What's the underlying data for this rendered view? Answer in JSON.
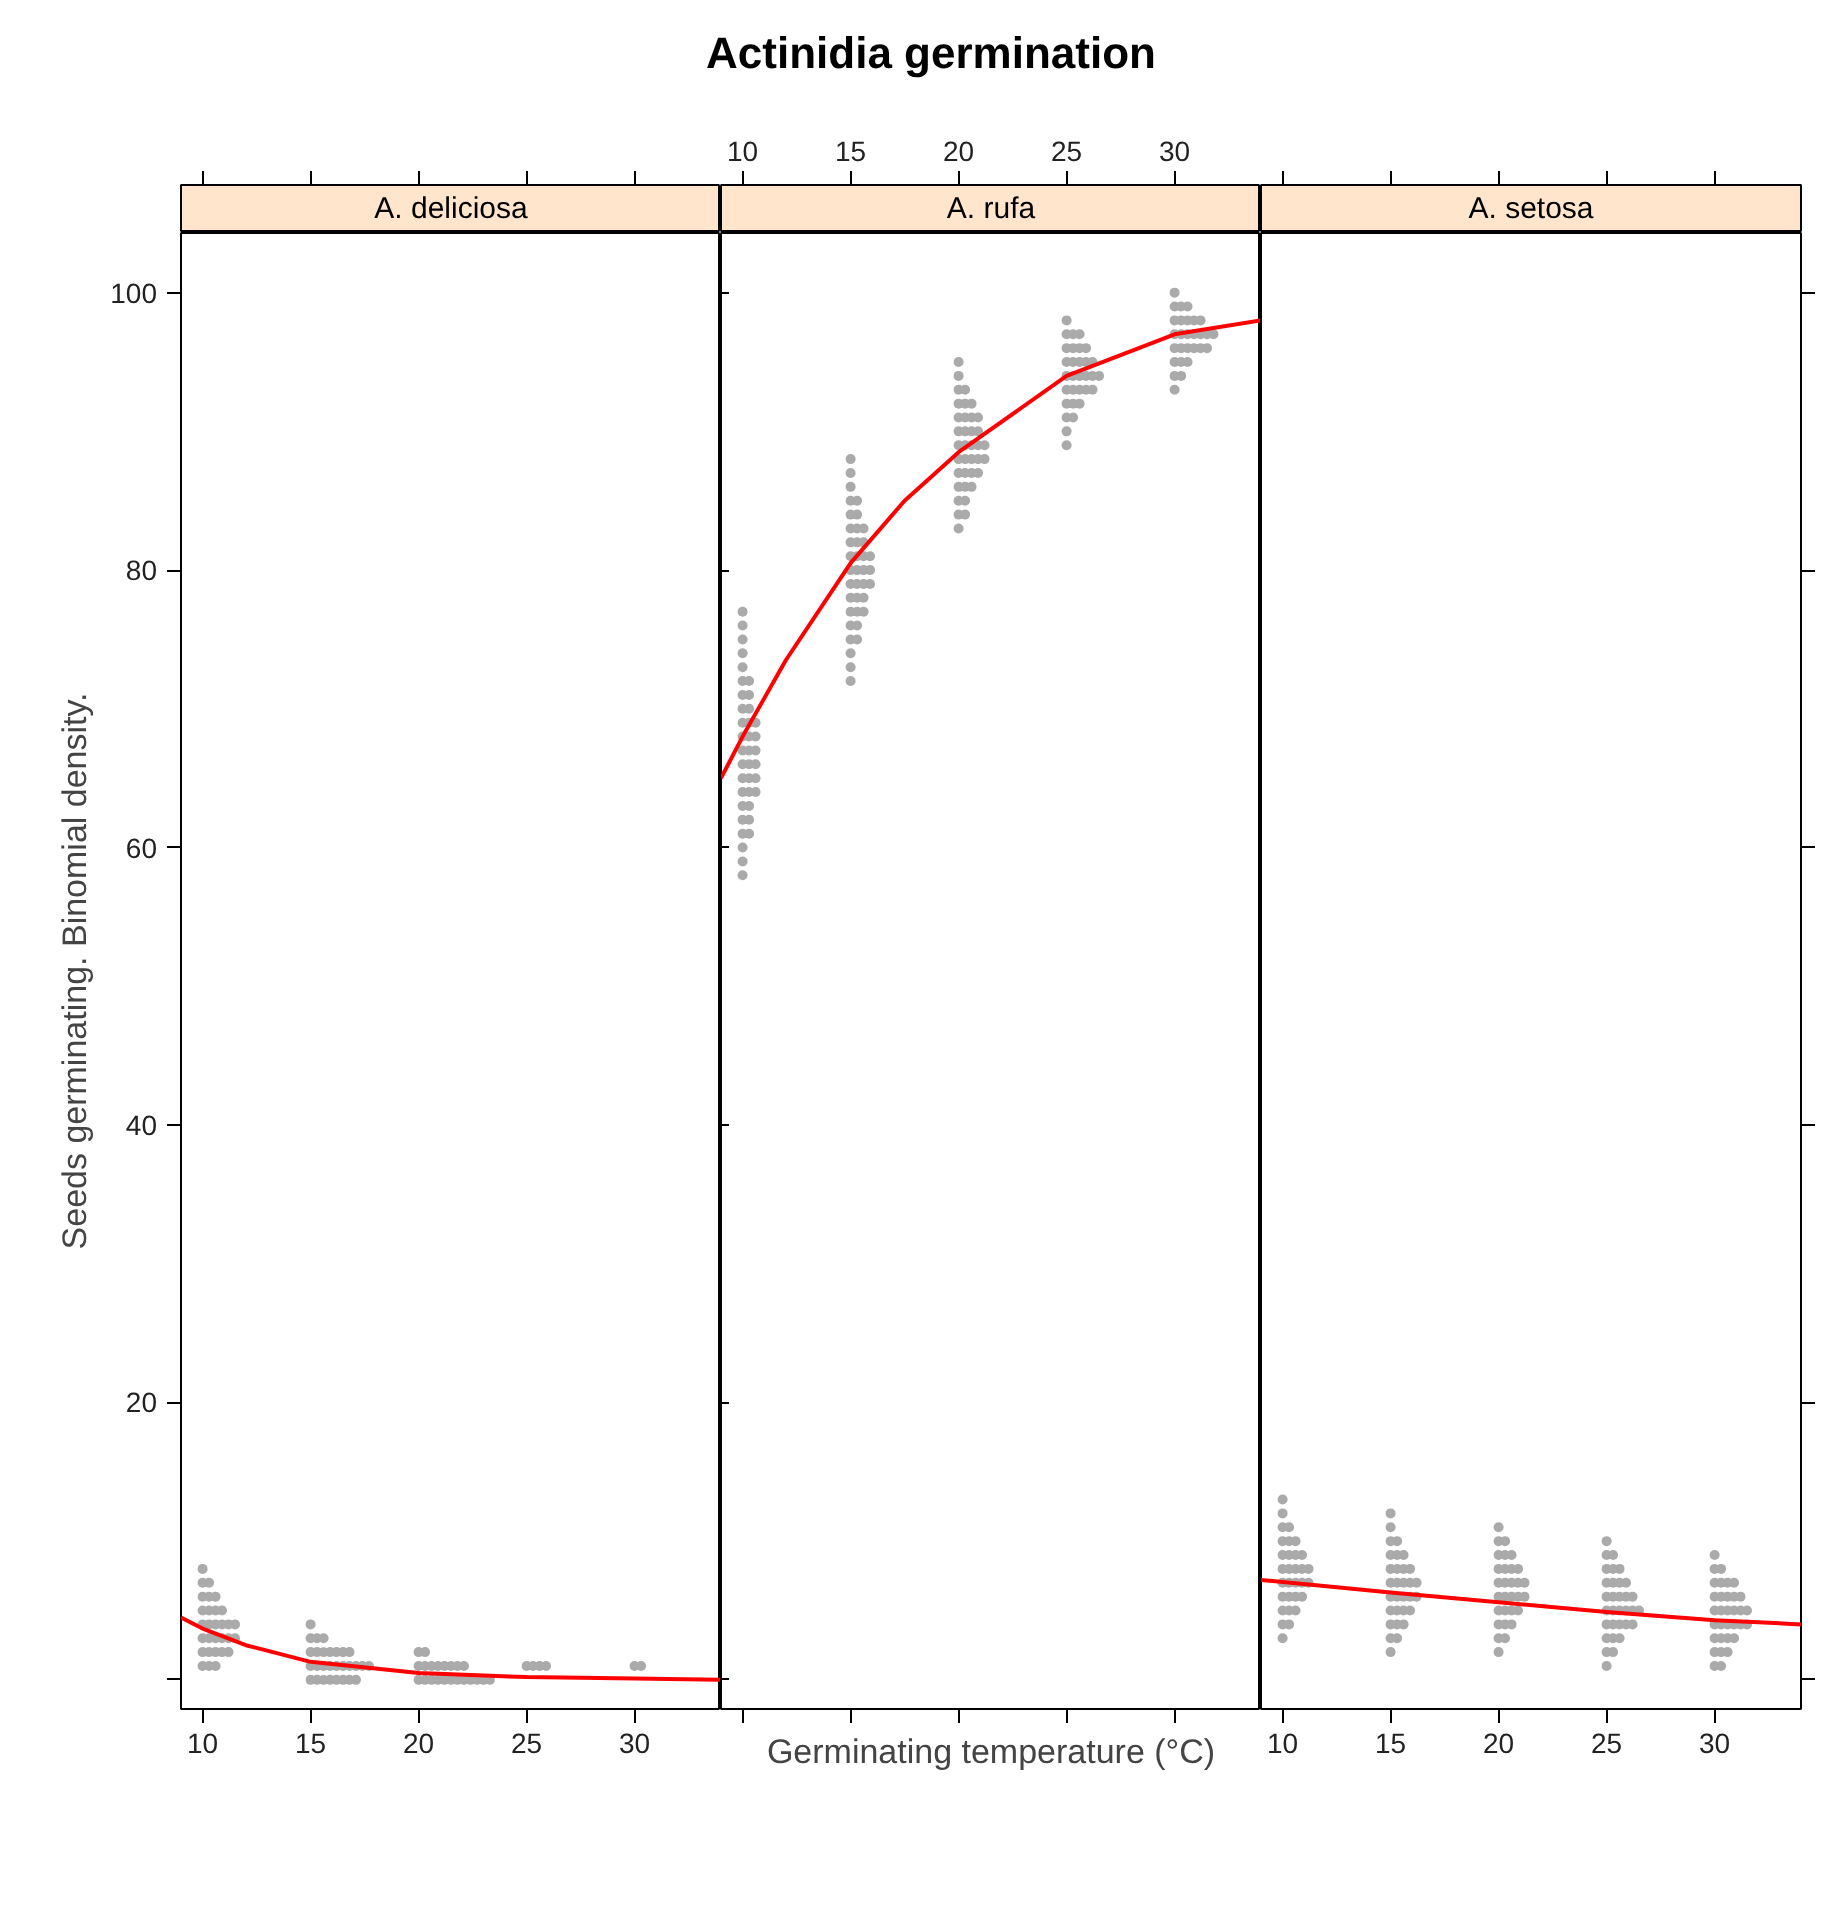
{
  "chart_data": [
    {
      "type": "scatter",
      "title": "A. deliciosa",
      "annotations": [
        "Actinidia germination"
      ],
      "ylabel": "Seeds germinating. Binomial density.",
      "xlim": [
        9,
        34
      ],
      "xticks": [
        10,
        15,
        20,
        25,
        30
      ],
      "ylim": [
        -2.1,
        104.3
      ],
      "yticks": [
        {
          "value": 0,
          "label": null
        },
        20,
        40,
        60,
        80,
        100
      ],
      "grid": false,
      "series": [
        {
          "marker": "circle",
          "color": "#aaaaaa",
          "x": [
            10,
            10.3,
            10.6,
            10,
            10.3,
            10.6,
            10.9,
            11.2,
            10,
            10.3,
            10.6,
            10.9,
            11.2,
            11.5,
            10,
            10.3,
            10.6,
            10.9,
            11.2,
            11.5,
            10,
            10.3,
            10.6,
            10.9,
            10,
            10.3,
            10.6,
            10,
            10.3,
            10,
            15,
            15.3,
            15.6,
            15.9,
            16.2,
            16.5,
            16.8,
            17.1,
            15,
            15.3,
            15.6,
            15.9,
            16.2,
            16.5,
            16.8,
            17.1,
            17.4,
            17.7,
            15,
            15.3,
            15.6,
            15.9,
            16.2,
            16.5,
            16.8,
            15,
            15.3,
            15.6,
            15,
            20,
            20.3,
            20.6,
            20.9,
            21.2,
            21.5,
            21.8,
            22.1,
            22.4,
            22.7,
            23,
            23.3,
            20,
            20.3,
            20.6,
            20.9,
            21.2,
            21.5,
            21.8,
            22.1,
            20,
            20.3,
            25,
            25.3,
            25.6,
            25.9,
            30,
            30.3
          ],
          "values": [
            1,
            1,
            1,
            2,
            2,
            2,
            2,
            2,
            3,
            3,
            3,
            3,
            3,
            3,
            4,
            4,
            4,
            4,
            4,
            4,
            5,
            5,
            5,
            5,
            6,
            6,
            6,
            7,
            7,
            8,
            0,
            0,
            0,
            0,
            0,
            0,
            0,
            0,
            1,
            1,
            1,
            1,
            1,
            1,
            1,
            1,
            1,
            1,
            2,
            2,
            2,
            2,
            2,
            2,
            2,
            3,
            3,
            3,
            4,
            0,
            0,
            0,
            0,
            0,
            0,
            0,
            0,
            0,
            0,
            0,
            0,
            1,
            1,
            1,
            1,
            1,
            1,
            1,
            1,
            2,
            2,
            1,
            1,
            1,
            1,
            1,
            1
          ]
        },
        {
          "type": "line",
          "color": "#ff0000",
          "x": [
            9,
            10,
            12,
            15,
            20,
            25,
            30,
            34
          ],
          "values": [
            4.5,
            3.7,
            2.5,
            1.3,
            0.5,
            0.2,
            0.1,
            0
          ]
        }
      ]
    },
    {
      "type": "scatter",
      "title": "A. rufa",
      "xlim": [
        9,
        34
      ],
      "xticks": [
        10,
        15,
        20,
        25,
        30
      ],
      "ylim": [
        -2.1,
        104.3
      ],
      "yticks": [
        0,
        20,
        40,
        60,
        80,
        100
      ],
      "tick_labels": "x",
      "xlabel": "Germinating temperature (°C)",
      "grid": false,
      "series": [
        {
          "marker": "circle",
          "color": "#aaaaaa",
          "x": [
            10,
            10,
            10,
            10,
            10.3,
            10,
            10.3,
            10,
            10.3,
            10,
            10.3,
            10.6,
            10,
            10.3,
            10.6,
            10,
            10.3,
            10.6,
            10,
            10.3,
            10.6,
            10,
            10.3,
            10.6,
            10,
            10.3,
            10.6,
            10,
            10.3,
            10,
            10.3,
            10,
            10.3,
            10,
            10,
            10,
            10,
            10,
            15,
            15,
            15,
            15,
            15.3,
            15,
            15.3,
            15,
            15.3,
            15.6,
            15,
            15.3,
            15.6,
            15,
            15.3,
            15.6,
            15.9,
            15,
            15.3,
            15.6,
            15.9,
            15,
            15.3,
            15.6,
            15.9,
            15,
            15.3,
            15.6,
            15,
            15.3,
            15.6,
            15,
            15.3,
            15,
            15.3,
            15,
            15,
            15,
            20,
            20,
            20.3,
            20,
            20.3,
            20,
            20.3,
            20.6,
            20,
            20.3,
            20.6,
            20.9,
            20,
            20.3,
            20.6,
            20.9,
            21.2,
            20,
            20.3,
            20.6,
            20.9,
            21.2,
            20,
            20.3,
            20.6,
            20.9,
            20,
            20.3,
            20.6,
            20.9,
            20,
            20.3,
            20.6,
            20,
            20.3,
            20,
            20,
            25,
            25,
            25,
            25.3,
            25,
            25.3,
            25.6,
            25,
            25.3,
            25.6,
            25.9,
            26.2,
            25,
            25.3,
            25.6,
            25.9,
            26.2,
            26.5,
            25,
            25.3,
            25.6,
            25.9,
            26.2,
            25,
            25.3,
            25.6,
            25.9,
            25,
            25.3,
            25.6,
            25,
            30,
            30,
            30.3,
            30,
            30.3,
            30.6,
            30,
            30.3,
            30.6,
            30.9,
            31.2,
            31.5,
            30,
            30.3,
            30.6,
            30.9,
            31.2,
            31.5,
            31.8,
            30,
            30.3,
            30.6,
            30.9,
            31.2,
            30,
            30.3,
            30.6,
            30
          ],
          "values": [
            58,
            59,
            60,
            61,
            61,
            62,
            62,
            63,
            63,
            64,
            64,
            64,
            65,
            65,
            65,
            66,
            66,
            66,
            67,
            67,
            67,
            68,
            68,
            68,
            69,
            69,
            69,
            70,
            70,
            71,
            71,
            72,
            72,
            73,
            74,
            75,
            76,
            77,
            72,
            73,
            74,
            75,
            75,
            76,
            76,
            77,
            77,
            77,
            78,
            78,
            78,
            79,
            79,
            79,
            79,
            80,
            80,
            80,
            80,
            81,
            81,
            81,
            81,
            82,
            82,
            82,
            83,
            83,
            83,
            84,
            84,
            85,
            85,
            86,
            87,
            88,
            83,
            84,
            84,
            85,
            85,
            86,
            86,
            86,
            87,
            87,
            87,
            87,
            88,
            88,
            88,
            88,
            88,
            89,
            89,
            89,
            89,
            89,
            90,
            90,
            90,
            90,
            91,
            91,
            91,
            91,
            92,
            92,
            92,
            93,
            93,
            94,
            95,
            89,
            90,
            91,
            91,
            92,
            92,
            92,
            93,
            93,
            93,
            93,
            93,
            94,
            94,
            94,
            94,
            94,
            94,
            95,
            95,
            95,
            95,
            95,
            96,
            96,
            96,
            96,
            97,
            97,
            97,
            98,
            93,
            94,
            94,
            95,
            95,
            95,
            96,
            96,
            96,
            96,
            96,
            96,
            97,
            97,
            97,
            97,
            97,
            97,
            97,
            98,
            98,
            98,
            98,
            98,
            99,
            99,
            99,
            100
          ]
        },
        {
          "type": "line",
          "color": "#ff0000",
          "x": [
            9,
            10,
            12,
            15,
            17.5,
            20,
            25,
            30,
            34
          ],
          "values": [
            65,
            68,
            73.5,
            80.5,
            85,
            88.5,
            94,
            97,
            98
          ]
        }
      ]
    },
    {
      "type": "scatter",
      "title": "A. setosa",
      "xlim": [
        9,
        34
      ],
      "xticks": [
        10,
        15,
        20,
        25,
        30
      ],
      "ylim": [
        -2.1,
        104.3
      ],
      "yticks": [
        0,
        20,
        40,
        60,
        80,
        100
      ],
      "tick_labels": "x",
      "grid": false,
      "series": [
        {
          "marker": "circle",
          "color": "#aaaaaa",
          "x": [
            10,
            10,
            10.3,
            10,
            10.3,
            10.6,
            10,
            10.3,
            10.6,
            10.9,
            10,
            10.3,
            10.6,
            10.9,
            11.2,
            10,
            10.3,
            10.6,
            10.9,
            11.2,
            10,
            10.3,
            10.6,
            10.9,
            10,
            10.3,
            10.6,
            10,
            10.3,
            10,
            10,
            15,
            15,
            15.3,
            15,
            15.3,
            15.6,
            15,
            15.3,
            15.6,
            15.9,
            15,
            15.3,
            15.6,
            15.9,
            16.2,
            15,
            15.3,
            15.6,
            15.9,
            16.2,
            15,
            15.3,
            15.6,
            15.9,
            15,
            15.3,
            15.6,
            15,
            15.3,
            15,
            15,
            20,
            20,
            20.3,
            20,
            20.3,
            20.6,
            20,
            20.3,
            20.6,
            20.9,
            20,
            20.3,
            20.6,
            20.9,
            21.2,
            20,
            20.3,
            20.6,
            20.9,
            21.2,
            20,
            20.3,
            20.6,
            20.9,
            20,
            20.3,
            20.6,
            20,
            20.3,
            20,
            25,
            25,
            25.3,
            25,
            25.3,
            25.6,
            25,
            25.3,
            25.6,
            25.9,
            26.2,
            25,
            25.3,
            25.6,
            25.9,
            26.2,
            26.5,
            25,
            25.3,
            25.6,
            25.9,
            26.2,
            25,
            25.3,
            25.6,
            25.9,
            25,
            25.3,
            25.6,
            25,
            25.3,
            25,
            30,
            30.3,
            30,
            30.3,
            30.6,
            30,
            30.3,
            30.6,
            30.9,
            30,
            30.3,
            30.6,
            30.9,
            31.2,
            31.5,
            30,
            30.3,
            30.6,
            30.9,
            31.2,
            31.5,
            30,
            30.3,
            30.6,
            30.9,
            31.2,
            30,
            30.3,
            30.6,
            30.9,
            30,
            30.3,
            30
          ],
          "values": [
            3,
            4,
            4,
            5,
            5,
            5,
            6,
            6,
            6,
            6,
            7,
            7,
            7,
            7,
            7,
            8,
            8,
            8,
            8,
            8,
            9,
            9,
            9,
            9,
            10,
            10,
            10,
            11,
            11,
            12,
            13,
            2,
            3,
            3,
            4,
            4,
            4,
            5,
            5,
            5,
            5,
            6,
            6,
            6,
            6,
            6,
            7,
            7,
            7,
            7,
            7,
            8,
            8,
            8,
            8,
            9,
            9,
            9,
            10,
            10,
            11,
            12,
            2,
            3,
            3,
            4,
            4,
            4,
            5,
            5,
            5,
            5,
            6,
            6,
            6,
            6,
            6,
            7,
            7,
            7,
            7,
            7,
            8,
            8,
            8,
            8,
            9,
            9,
            9,
            10,
            10,
            11,
            1,
            2,
            2,
            3,
            3,
            3,
            4,
            4,
            4,
            4,
            4,
            5,
            5,
            5,
            5,
            5,
            5,
            6,
            6,
            6,
            6,
            6,
            7,
            7,
            7,
            7,
            8,
            8,
            8,
            9,
            9,
            10,
            1,
            1,
            2,
            2,
            2,
            3,
            3,
            3,
            3,
            4,
            4,
            4,
            4,
            4,
            4,
            5,
            5,
            5,
            5,
            5,
            5,
            6,
            6,
            6,
            6,
            6,
            7,
            7,
            7,
            7,
            8,
            8,
            9
          ]
        },
        {
          "type": "line",
          "color": "#ff0000",
          "x": [
            9,
            15,
            20,
            25,
            30,
            34
          ],
          "values": [
            7.2,
            6.3,
            5.6,
            4.9,
            4.3,
            4.0
          ]
        }
      ]
    }
  ]
}
